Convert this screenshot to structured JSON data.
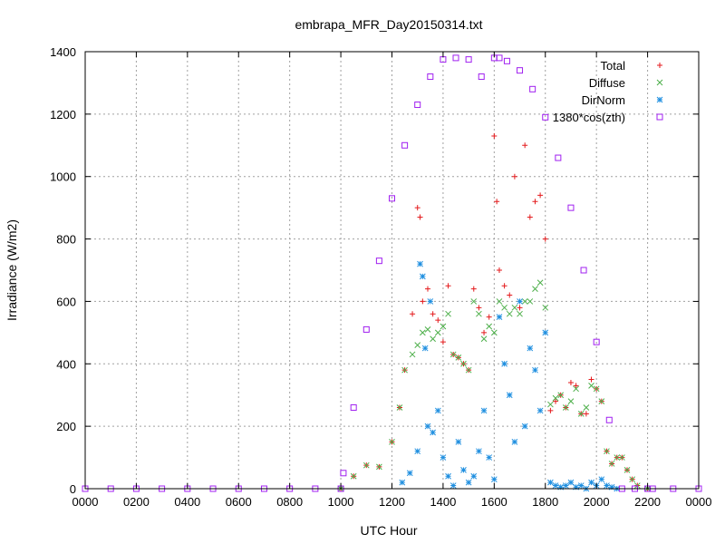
{
  "chart_data": {
    "type": "scatter",
    "title": "embrapa_MFR_Day20150314.txt",
    "xlabel": "UTC Hour",
    "ylabel": "Irradiance (W/m2)",
    "xlim": [
      0,
      24
    ],
    "ylim": [
      0,
      1400
    ],
    "x_ticks": [
      0,
      2,
      4,
      6,
      8,
      10,
      12,
      14,
      16,
      18,
      20,
      22,
      24
    ],
    "x_tick_labels": [
      "0000",
      "0200",
      "0400",
      "0600",
      "0800",
      "1000",
      "1200",
      "1400",
      "1600",
      "1800",
      "2000",
      "2200",
      "0000"
    ],
    "y_ticks": [
      0,
      200,
      400,
      600,
      800,
      1000,
      1200,
      1400
    ],
    "y_tick_labels": [
      "0",
      "200",
      "400",
      "600",
      "800",
      "1000",
      "1200",
      "1400"
    ],
    "grid": true,
    "legend_position": "top-right",
    "series": [
      {
        "name": "Total",
        "color": "#e41a1c",
        "marker": "plus",
        "x": [
          10.0,
          10.5,
          11.0,
          11.5,
          12.0,
          12.3,
          12.5,
          12.8,
          13.0,
          13.1,
          13.2,
          13.4,
          13.6,
          13.8,
          14.0,
          14.2,
          14.4,
          14.6,
          14.8,
          15.0,
          15.2,
          15.4,
          15.6,
          15.8,
          16.0,
          16.1,
          16.2,
          16.4,
          16.6,
          16.8,
          17.0,
          17.2,
          17.4,
          17.6,
          17.8,
          18.0,
          18.2,
          18.4,
          18.6,
          18.8,
          19.0,
          19.2,
          19.4,
          19.6,
          19.8,
          20.0,
          20.2,
          20.4,
          20.6,
          20.8,
          21.0,
          21.2,
          21.4,
          21.6,
          22.0
        ],
        "y": [
          0,
          40,
          75,
          70,
          150,
          260,
          380,
          560,
          900,
          870,
          600,
          640,
          560,
          540,
          470,
          650,
          430,
          420,
          400,
          380,
          640,
          580,
          500,
          550,
          1130,
          920,
          700,
          650,
          620,
          1000,
          580,
          1100,
          870,
          920,
          940,
          800,
          250,
          280,
          300,
          260,
          340,
          330,
          240,
          240,
          350,
          320,
          280,
          120,
          80,
          100,
          100,
          60,
          30,
          10,
          0
        ]
      },
      {
        "name": "Diffuse",
        "color": "#4daf4a",
        "marker": "cross",
        "x": [
          10.0,
          10.5,
          11.0,
          11.5,
          12.0,
          12.3,
          12.5,
          12.8,
          13.0,
          13.2,
          13.4,
          13.6,
          13.8,
          14.0,
          14.2,
          14.4,
          14.6,
          14.8,
          15.0,
          15.2,
          15.4,
          15.6,
          15.8,
          16.0,
          16.2,
          16.4,
          16.6,
          16.8,
          17.0,
          17.2,
          17.4,
          17.6,
          17.8,
          18.0,
          18.2,
          18.4,
          18.6,
          18.8,
          19.0,
          19.2,
          19.4,
          19.6,
          19.8,
          20.0,
          20.2,
          20.4,
          20.6,
          20.8,
          21.0,
          21.2,
          21.4,
          21.6,
          22.0
        ],
        "y": [
          0,
          40,
          75,
          70,
          150,
          260,
          380,
          430,
          460,
          500,
          510,
          480,
          500,
          520,
          560,
          430,
          420,
          400,
          380,
          600,
          560,
          480,
          520,
          500,
          600,
          580,
          560,
          580,
          560,
          600,
          600,
          640,
          660,
          580,
          270,
          290,
          300,
          260,
          280,
          320,
          240,
          260,
          330,
          320,
          280,
          120,
          80,
          100,
          100,
          60,
          30,
          10,
          0
        ]
      },
      {
        "name": "DirNorm",
        "color": "#1f8fe0",
        "marker": "star",
        "x": [
          12.4,
          12.7,
          13.0,
          13.1,
          13.2,
          13.3,
          13.4,
          13.5,
          13.6,
          13.8,
          14.0,
          14.2,
          14.4,
          14.6,
          14.8,
          15.0,
          15.2,
          15.4,
          15.6,
          15.8,
          16.0,
          16.2,
          16.4,
          16.6,
          16.8,
          17.0,
          17.2,
          17.4,
          17.6,
          17.8,
          18.0,
          18.2,
          18.4,
          18.6,
          18.8,
          19.0,
          19.2,
          19.4,
          19.6,
          19.8,
          20.0,
          20.2,
          20.4,
          20.6,
          20.8
        ],
        "y": [
          20,
          50,
          120,
          720,
          680,
          450,
          200,
          600,
          180,
          250,
          100,
          40,
          10,
          150,
          60,
          20,
          40,
          120,
          250,
          100,
          30,
          550,
          400,
          300,
          150,
          600,
          200,
          450,
          380,
          250,
          500,
          20,
          10,
          5,
          10,
          20,
          5,
          10,
          0,
          20,
          10,
          30,
          10,
          5,
          0
        ]
      },
      {
        "name": "1380*cos(zth)",
        "color": "#a020f0",
        "marker": "square",
        "x": [
          0,
          1,
          2,
          3,
          4,
          5,
          6,
          7,
          8,
          9,
          10,
          10.1,
          10.5,
          11.0,
          11.5,
          12.0,
          12.5,
          13.0,
          13.5,
          14.0,
          14.5,
          15.0,
          15.5,
          16.0,
          16.2,
          16.5,
          17.0,
          17.5,
          18.0,
          18.5,
          19.0,
          19.5,
          20.0,
          20.5,
          21.0,
          21.5,
          22.0,
          22.2,
          23,
          24
        ],
        "y": [
          0,
          0,
          0,
          0,
          0,
          0,
          0,
          0,
          0,
          0,
          0,
          50,
          260,
          510,
          730,
          930,
          1100,
          1230,
          1320,
          1375,
          1380,
          1375,
          1320,
          1380,
          1380,
          1370,
          1340,
          1280,
          1190,
          1060,
          900,
          700,
          470,
          220,
          0,
          0,
          0,
          0,
          0,
          0
        ]
      }
    ]
  }
}
